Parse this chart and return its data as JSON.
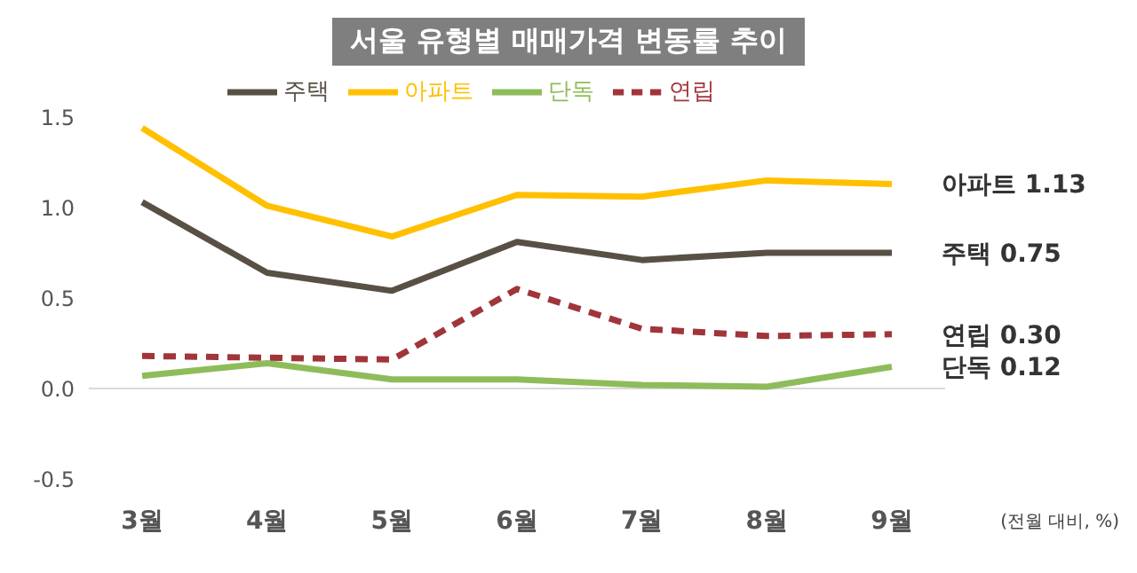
{
  "chart_data": {
    "type": "line",
    "title": "서울 유형별 매매가격 변동률 추이",
    "categories": [
      "3월",
      "4월",
      "5월",
      "6월",
      "7월",
      "8월",
      "9월"
    ],
    "series": [
      {
        "name": "주택",
        "color": "#595045",
        "values": [
          1.03,
          0.64,
          0.54,
          0.81,
          0.71,
          0.75,
          0.75
        ]
      },
      {
        "name": "아파트",
        "color": "#ffc000",
        "values": [
          1.44,
          1.01,
          0.84,
          1.07,
          1.06,
          1.15,
          1.13
        ]
      },
      {
        "name": "단독",
        "color": "#8fbc5a",
        "values": [
          0.07,
          0.14,
          0.05,
          0.05,
          0.02,
          0.01,
          0.12
        ]
      },
      {
        "name": "연립",
        "color": "#a0353a",
        "line_style": "dashed",
        "values": [
          0.18,
          0.17,
          0.16,
          0.55,
          0.33,
          0.29,
          0.3
        ]
      }
    ],
    "ylim": [
      -0.5,
      1.5
    ],
    "yticks": [
      {
        "value": -0.5,
        "label": "-0.5"
      },
      {
        "value": 0,
        "label": "0.0"
      },
      {
        "value": 0.5,
        "label": "0.5"
      },
      {
        "value": 1,
        "label": "1.0"
      },
      {
        "value": 1.5,
        "label": "1.5"
      }
    ],
    "ref_lines": [
      {
        "axis": "y",
        "value": 0,
        "color": "#d9d9d9"
      }
    ],
    "annotations": [
      {
        "text": "아파트 1.13",
        "x": "9월",
        "y": 1.13
      },
      {
        "text": "주택 0.75",
        "x": "9월",
        "y": 0.75
      },
      {
        "text": "연립 0.30",
        "x": "9월",
        "y": 0.3
      },
      {
        "text": "단독 0.12",
        "x": "9월",
        "y": 0.12
      },
      "(전월 대비, %)"
    ],
    "grid": false,
    "legend": "top",
    "marker": "none",
    "line_style": "solid"
  }
}
